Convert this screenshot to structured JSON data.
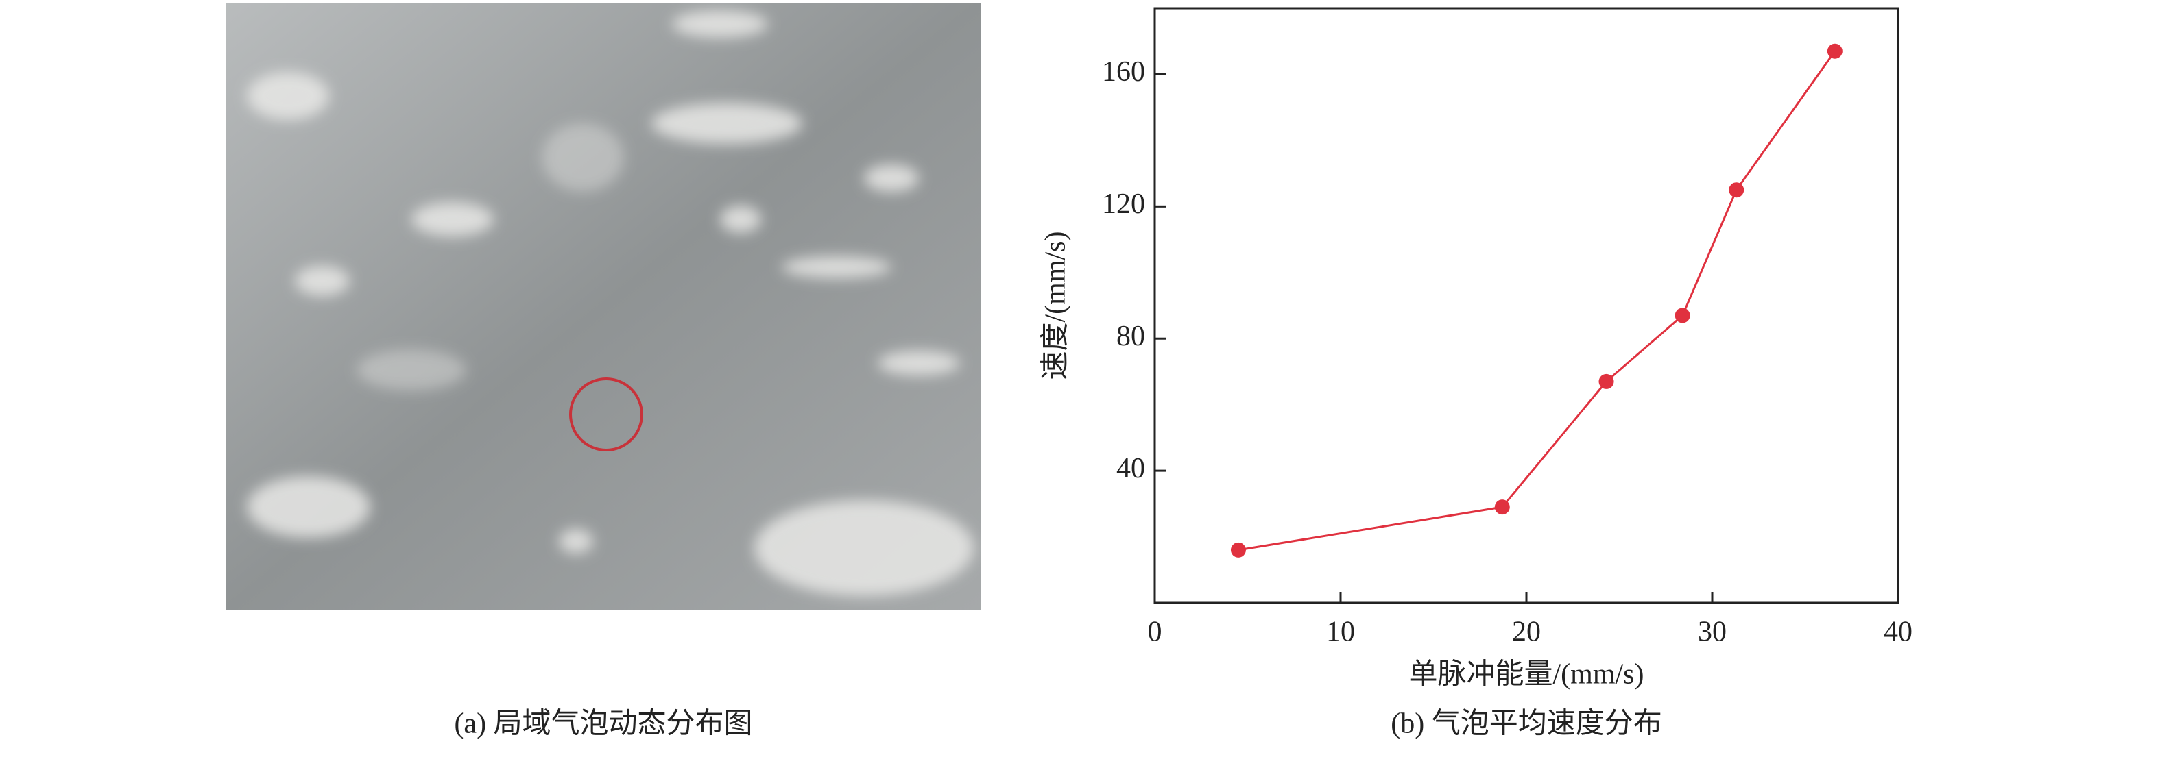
{
  "chart_data": {
    "type": "line",
    "caption": "(b) 气泡平均速度分布",
    "xlabel": "单脉冲能量/(mm/s)",
    "ylabel": "速度/(mm/s)",
    "x": [
      4.5,
      18.7,
      24.3,
      28.4,
      31.3,
      36.6
    ],
    "values": [
      16,
      29,
      67,
      87,
      125,
      167
    ],
    "color": "#e0313f",
    "xlim": [
      0,
      40
    ],
    "xticks": [
      0,
      10,
      20,
      30,
      40
    ],
    "ylim": [
      0,
      180
    ],
    "yticks": [
      40,
      80,
      120,
      160
    ]
  },
  "figure_a": {
    "caption": "(a) 局域气泡动态分布图"
  }
}
